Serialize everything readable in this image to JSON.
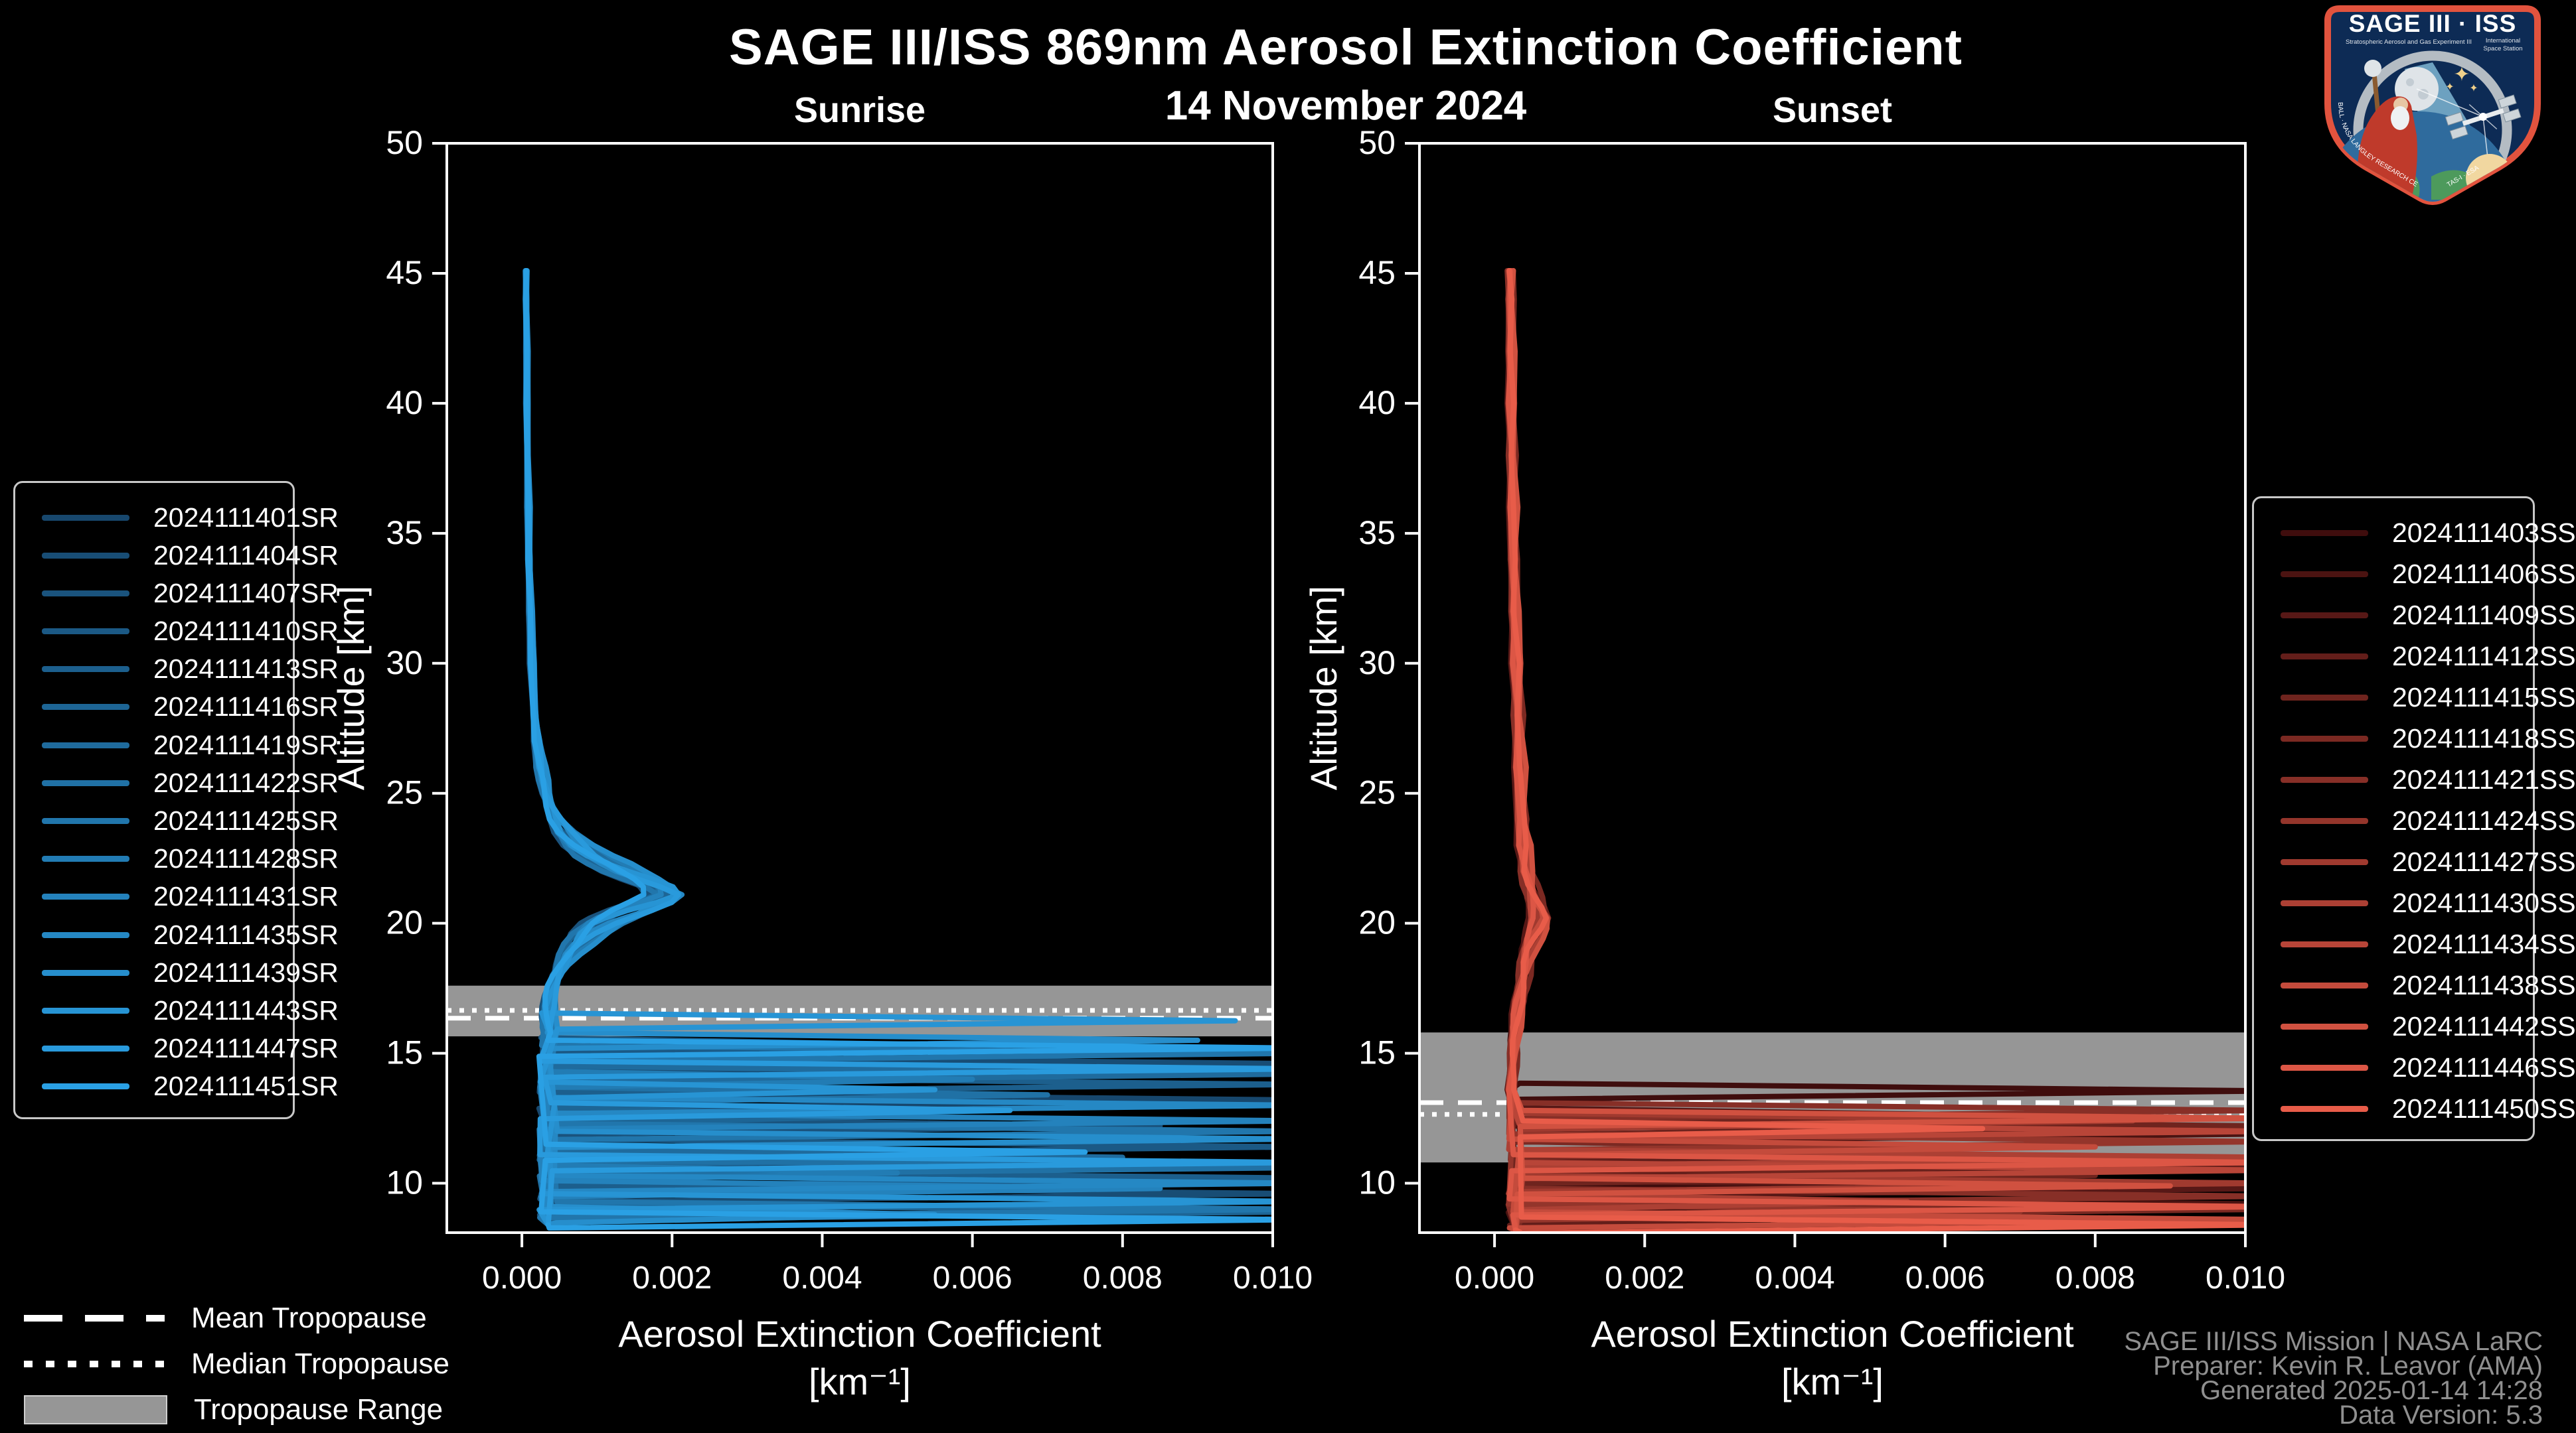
{
  "header": {
    "title": "SAGE III/ISS 869nm Aerosol Extinction Coefficient",
    "subtitle": "14 November 2024"
  },
  "chart_data": [
    {
      "type": "line",
      "title": "Sunrise",
      "xlabel": "Aerosol Extinction Coefficient",
      "xlabel_units": "[km⁻¹]",
      "ylabel": "Altitude [km]",
      "xlim": [
        -0.001,
        0.01
      ],
      "ylim": [
        8.1,
        50
      ],
      "xticks": [
        0.0,
        0.002,
        0.004,
        0.006,
        0.008,
        0.01
      ],
      "xtick_labels": [
        "0.000",
        "0.002",
        "0.004",
        "0.006",
        "0.008",
        "0.010"
      ],
      "yticks": [
        10,
        15,
        20,
        25,
        30,
        35,
        40,
        45,
        50
      ],
      "grid": false,
      "line_color_start": "#17476d",
      "line_color_end": "#2aa0e4",
      "tropopause": {
        "mean_km": 16.35,
        "median_km": 16.65,
        "range_km": [
          15.65,
          17.6
        ]
      },
      "profile_altitudes_km": [
        45.1,
        44,
        42,
        40,
        38,
        36,
        34,
        32,
        30,
        28,
        27,
        26,
        25.5,
        25,
        24.5,
        24,
        23.5,
        23,
        22.6,
        22.3,
        22,
        21.7,
        21.4,
        21.1,
        20.8,
        20.5,
        20.2,
        20,
        19.6,
        19.2,
        18.8,
        18.4,
        18,
        17.6,
        17.2,
        16.8,
        16.4,
        16,
        15.8
      ],
      "profile_extinction": [
        6e-05,
        6e-05,
        7e-05,
        7e-05,
        8e-05,
        9e-05,
        0.0001,
        0.00012,
        0.00014,
        0.00018,
        0.00021,
        0.00026,
        0.0003,
        0.00034,
        0.0004,
        0.00048,
        0.0006,
        0.00078,
        0.00098,
        0.0012,
        0.00142,
        0.00168,
        0.00193,
        0.00205,
        0.00185,
        0.00155,
        0.00128,
        0.00112,
        0.00092,
        0.00078,
        0.00066,
        0.00057,
        0.0005,
        0.00044,
        0.0004,
        0.00038,
        0.00037,
        0.00038,
        0.0004
      ],
      "bundle_extinction": 0.00035,
      "bottom_altitude_km": 8.4,
      "series": [
        {
          "label": "2024111401SR",
          "scale": 0.82,
          "cloud_spikes": [
            [
              13.2,
              0.0104
            ],
            [
              10.9,
              0.0062
            ]
          ]
        },
        {
          "label": "2024111404SR",
          "scale": 0.9,
          "cloud_spikes": [
            [
              14.6,
              0.0104
            ],
            [
              9.6,
              0.0104
            ]
          ]
        },
        {
          "label": "2024111407SR",
          "scale": 0.78,
          "cloud_spikes": [
            [
              12.2,
              0.0085
            ],
            [
              9.1,
              0.0046
            ]
          ]
        },
        {
          "label": "2024111410SR",
          "scale": 1.0,
          "cloud_spikes": [
            [
              15.3,
              0.0058
            ],
            [
              11.4,
              0.0104
            ]
          ]
        },
        {
          "label": "2024111413SR",
          "scale": 0.95,
          "cloud_spikes": [
            [
              13.8,
              0.0104
            ],
            [
              10.2,
              0.0104
            ]
          ]
        },
        {
          "label": "2024111416SR",
          "scale": 0.85,
          "cloud_spikes": [
            [
              12.6,
              0.0052
            ],
            [
              8.9,
              0.0104
            ]
          ]
        },
        {
          "label": "2024111419SR",
          "scale": 1.05,
          "cloud_spikes": [
            [
              14.2,
              0.0104
            ],
            [
              11.0,
              0.008
            ]
          ]
        },
        {
          "label": "2024111422SR",
          "scale": 0.92,
          "cloud_spikes": [
            [
              13.4,
              0.007
            ],
            [
              10.6,
              0.0104
            ]
          ]
        },
        {
          "label": "2024111425SR",
          "scale": 0.8,
          "cloud_spikes": [
            [
              15.0,
              0.0104
            ],
            [
              12.0,
              0.0104
            ],
            [
              9.0,
              0.0104
            ]
          ]
        },
        {
          "label": "2024111428SR",
          "scale": 1.1,
          "cloud_spikes": [
            [
              14.0,
              0.006
            ],
            [
              10.4,
              0.005
            ]
          ]
        },
        {
          "label": "2024111431SR",
          "scale": 0.88,
          "cloud_spikes": [
            [
              12.4,
              0.0104
            ],
            [
              9.8,
              0.0085
            ]
          ]
        },
        {
          "label": "2024111435SR",
          "scale": 0.98,
          "cloud_spikes": [
            [
              13.0,
              0.0104
            ],
            [
              10.0,
              0.0104
            ]
          ]
        },
        {
          "label": "2024111439SR",
          "scale": 1.12,
          "cloud_spikes": [
            [
              15.5,
              0.009
            ],
            [
              11.7,
              0.0104
            ],
            [
              8.8,
              0.0055
            ]
          ]
        },
        {
          "label": "2024111443SR",
          "scale": 0.94,
          "cloud_spikes": [
            [
              16.25,
              0.0095
            ],
            [
              13.6,
              0.0055
            ],
            [
              9.3,
              0.0104
            ]
          ]
        },
        {
          "label": "2024111447SR",
          "scale": 1.02,
          "cloud_spikes": [
            [
              14.4,
              0.0104
            ],
            [
              12.8,
              0.0065
            ],
            [
              10.8,
              0.0104
            ]
          ]
        },
        {
          "label": "2024111451SR",
          "scale": 0.86,
          "cloud_spikes": [
            [
              15.2,
              0.0104
            ],
            [
              11.2,
              0.0075
            ],
            [
              8.6,
              0.0104
            ]
          ]
        }
      ]
    },
    {
      "type": "line",
      "title": "Sunset",
      "xlabel": "Aerosol Extinction Coefficient",
      "xlabel_units": "[km⁻¹]",
      "ylabel": "Altitude [km]",
      "xlim": [
        -0.001,
        0.01
      ],
      "ylim": [
        8.1,
        50
      ],
      "xticks": [
        0.0,
        0.002,
        0.004,
        0.006,
        0.008,
        0.01
      ],
      "xtick_labels": [
        "0.000",
        "0.002",
        "0.004",
        "0.006",
        "0.008",
        "0.010"
      ],
      "yticks": [
        10,
        15,
        20,
        25,
        30,
        35,
        40,
        45,
        50
      ],
      "grid": false,
      "line_color_start": "#3f0d0d",
      "line_color_end": "#e85c49",
      "tropopause": {
        "mean_km": 13.1,
        "median_km": 12.65,
        "range_km": [
          10.8,
          15.8
        ]
      },
      "profile_altitudes_km": [
        45.1,
        44,
        42,
        40,
        38,
        36,
        34,
        32,
        30,
        28,
        26,
        24,
        23,
        22,
        21.5,
        21,
        20.6,
        20.2,
        19.8,
        19.4,
        19,
        18.5,
        18,
        17.5,
        17,
        16.5,
        16,
        15.5,
        15,
        14.5,
        14,
        13.6
      ],
      "profile_extinction": [
        0.00022,
        0.00022,
        0.00023,
        0.00023,
        0.00024,
        0.00025,
        0.00026,
        0.00028,
        0.0003,
        0.00032,
        0.00034,
        0.00037,
        0.0004,
        0.00044,
        0.00048,
        0.00053,
        0.00058,
        0.00062,
        0.00058,
        0.00052,
        0.00047,
        0.00043,
        0.0004,
        0.00037,
        0.00034,
        0.00031,
        0.00029,
        0.00027,
        0.00026,
        0.00025,
        0.00024,
        0.00023
      ],
      "bundle_extinction": 0.00028,
      "bottom_altitude_km": 8.2,
      "series": [
        {
          "label": "2024111403SS",
          "scale": 0.85,
          "cloud_spikes": [
            [
              13.55,
              0.0104
            ],
            [
              10.1,
              0.0062
            ]
          ]
        },
        {
          "label": "2024111406SS",
          "scale": 0.95,
          "cloud_spikes": [
            [
              11.9,
              0.0104
            ],
            [
              9.2,
              0.0104
            ]
          ]
        },
        {
          "label": "2024111409SS",
          "scale": 0.8,
          "cloud_spikes": [
            [
              12.6,
              0.007
            ],
            [
              9.8,
              0.0104
            ]
          ]
        },
        {
          "label": "2024111412SS",
          "scale": 1.05,
          "cloud_spikes": [
            [
              10.6,
              0.0104
            ],
            [
              8.7,
              0.005
            ]
          ]
        },
        {
          "label": "2024111415SS",
          "scale": 0.9,
          "cloud_spikes": [
            [
              12.2,
              0.0104
            ],
            [
              10.3,
              0.008
            ]
          ]
        },
        {
          "label": "2024111418SS",
          "scale": 1.1,
          "cloud_spikes": [
            [
              11.3,
              0.006
            ],
            [
              9.0,
              0.0104
            ]
          ]
        },
        {
          "label": "2024111421SS",
          "scale": 0.85,
          "cloud_spikes": [
            [
              12.8,
              0.0104
            ],
            [
              9.5,
              0.0104
            ]
          ]
        },
        {
          "label": "2024111424SS",
          "scale": 1.0,
          "cloud_spikes": [
            [
              11.6,
              0.0104
            ],
            [
              8.9,
              0.007
            ]
          ]
        },
        {
          "label": "2024111427SS",
          "scale": 0.92,
          "cloud_spikes": [
            [
              12.4,
              0.0085
            ],
            [
              10.0,
              0.0104
            ]
          ]
        },
        {
          "label": "2024111430SS",
          "scale": 1.08,
          "cloud_spikes": [
            [
              11.0,
              0.0104
            ],
            [
              9.3,
              0.0055
            ]
          ]
        },
        {
          "label": "2024111434SS",
          "scale": 0.88,
          "cloud_spikes": [
            [
              12.0,
              0.0104
            ],
            [
              10.5,
              0.0104
            ]
          ]
        },
        {
          "label": "2024111438SS",
          "scale": 0.96,
          "cloud_spikes": [
            [
              11.4,
              0.008
            ],
            [
              8.6,
              0.0104
            ]
          ]
        },
        {
          "label": "2024111442SS",
          "scale": 1.12,
          "cloud_spikes": [
            [
              12.5,
              0.0104
            ],
            [
              9.9,
              0.009
            ]
          ]
        },
        {
          "label": "2024111446SS",
          "scale": 0.9,
          "cloud_spikes": [
            [
              10.8,
              0.0104
            ],
            [
              9.1,
              0.0104
            ]
          ]
        },
        {
          "label": "2024111450SS",
          "scale": 1.0,
          "cloud_spikes": [
            [
              12.1,
              0.0065
            ],
            [
              8.4,
              0.0104
            ]
          ]
        }
      ]
    }
  ],
  "tropopause_legend": {
    "mean": "Mean Tropopause",
    "median": "Median Tropopause",
    "range": "Tropopause Range"
  },
  "attribution": {
    "line1": "SAGE III/ISS Mission | NASA LaRC",
    "line2": "Preparer: Kevin R. Leavor (AMA)",
    "line3": "Generated 2025-01-14 14:28",
    "line4": "Data Version: 5.3"
  },
  "logo": {
    "title": "SAGE III · ISS",
    "subtitle_left": "Stratospheric Aerosol and Gas Experiment III",
    "subtitle_right_1": "International",
    "subtitle_right_2": "Space Station",
    "rim_text_left": "BALL · NASA LANGLEY RESEARCH CENTER",
    "rim_text_right": "TAS-I · ESA"
  },
  "colors": {
    "background": "#000000",
    "axis": "#ffffff",
    "tropopause_band": "#969696",
    "attribution_text": "#8f8f8f"
  }
}
